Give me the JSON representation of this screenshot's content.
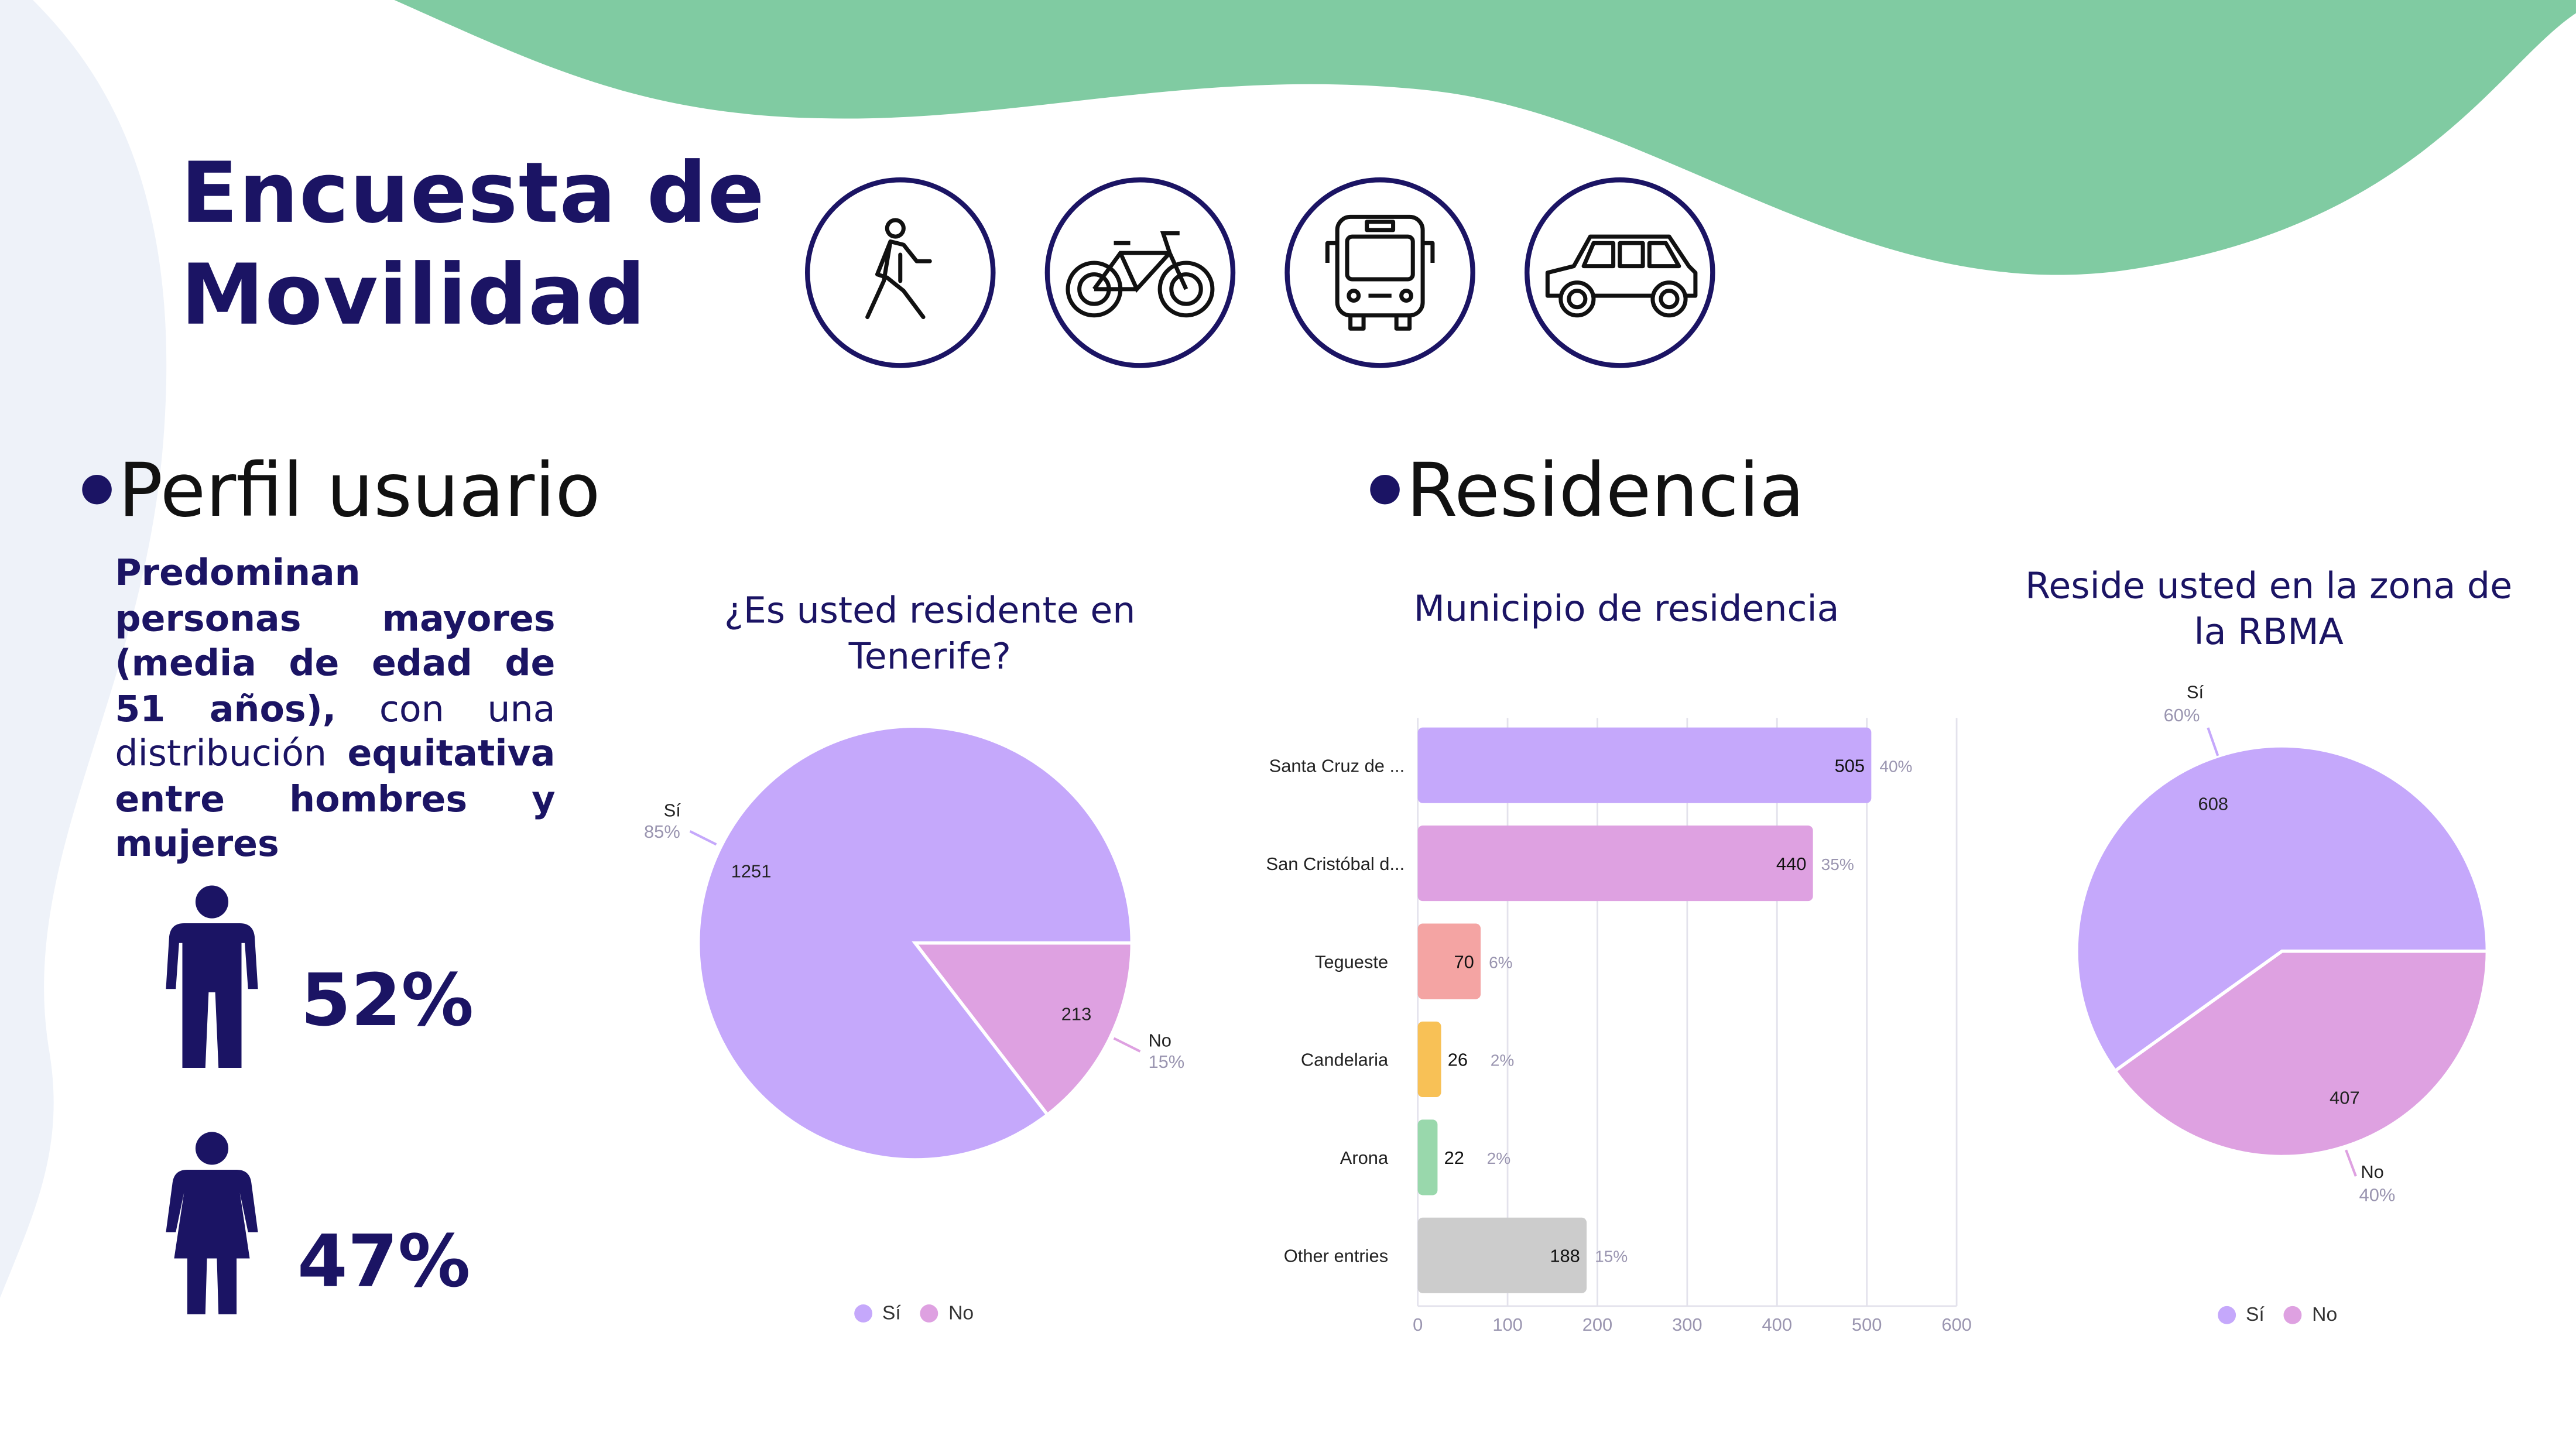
{
  "header": {
    "title_line1": "Encuesta de",
    "title_line2": "Movilidad",
    "icons": [
      "pedestrian-icon",
      "bicycle-icon",
      "bus-icon",
      "car-icon"
    ]
  },
  "colors": {
    "navy": "#1b1464",
    "green_wave": "#80cba2",
    "side_blob": "#eef2f9",
    "si": "#c5a8fb",
    "no": "#dea1e1"
  },
  "perfil": {
    "heading": "Perfil usuario",
    "text_bold1": "Predominan personas mayores (media de edad de 51 años),",
    "text_normal": " con una distribución ",
    "text_bold2": "equitativa entre hombres y mujeres",
    "male_pct": "52%",
    "female_pct": "47%"
  },
  "residencia": {
    "heading": "Residencia"
  },
  "chart_data": [
    {
      "type": "pie",
      "title": "¿Es usted residente en Tenerife?",
      "categories": [
        "Sí",
        "No"
      ],
      "values": [
        1251,
        213
      ],
      "percent_labels": [
        "85%",
        "15%"
      ],
      "colors": [
        "#c5a8fb",
        "#dea1e1"
      ],
      "legend": "bottom"
    },
    {
      "type": "bar",
      "orientation": "horizontal",
      "title": "Municipio de residencia",
      "categories": [
        "Santa Cruz de ...",
        "San Cristóbal d...",
        "Tegueste",
        "Candelaria",
        "Arona",
        "Other entries"
      ],
      "values": [
        505,
        440,
        70,
        26,
        22,
        188
      ],
      "percent_labels": [
        "40%",
        "35%",
        "6%",
        "2%",
        "2%",
        "15%"
      ],
      "colors": [
        "#c5a8fb",
        "#dea1e1",
        "#f4a4a3",
        "#f8c156",
        "#99d8ac",
        "#cccccc"
      ],
      "xlim": [
        0,
        600
      ],
      "xticks": [
        0,
        100,
        200,
        300,
        400,
        500,
        600
      ],
      "grid": true
    },
    {
      "type": "pie",
      "title": "Reside usted en la zona de la RBMA",
      "categories": [
        "Sí",
        "No"
      ],
      "values": [
        608,
        407
      ],
      "percent_labels": [
        "60%",
        "40%"
      ],
      "colors": [
        "#c5a8fb",
        "#dea1e1"
      ],
      "legend": "bottom"
    }
  ]
}
